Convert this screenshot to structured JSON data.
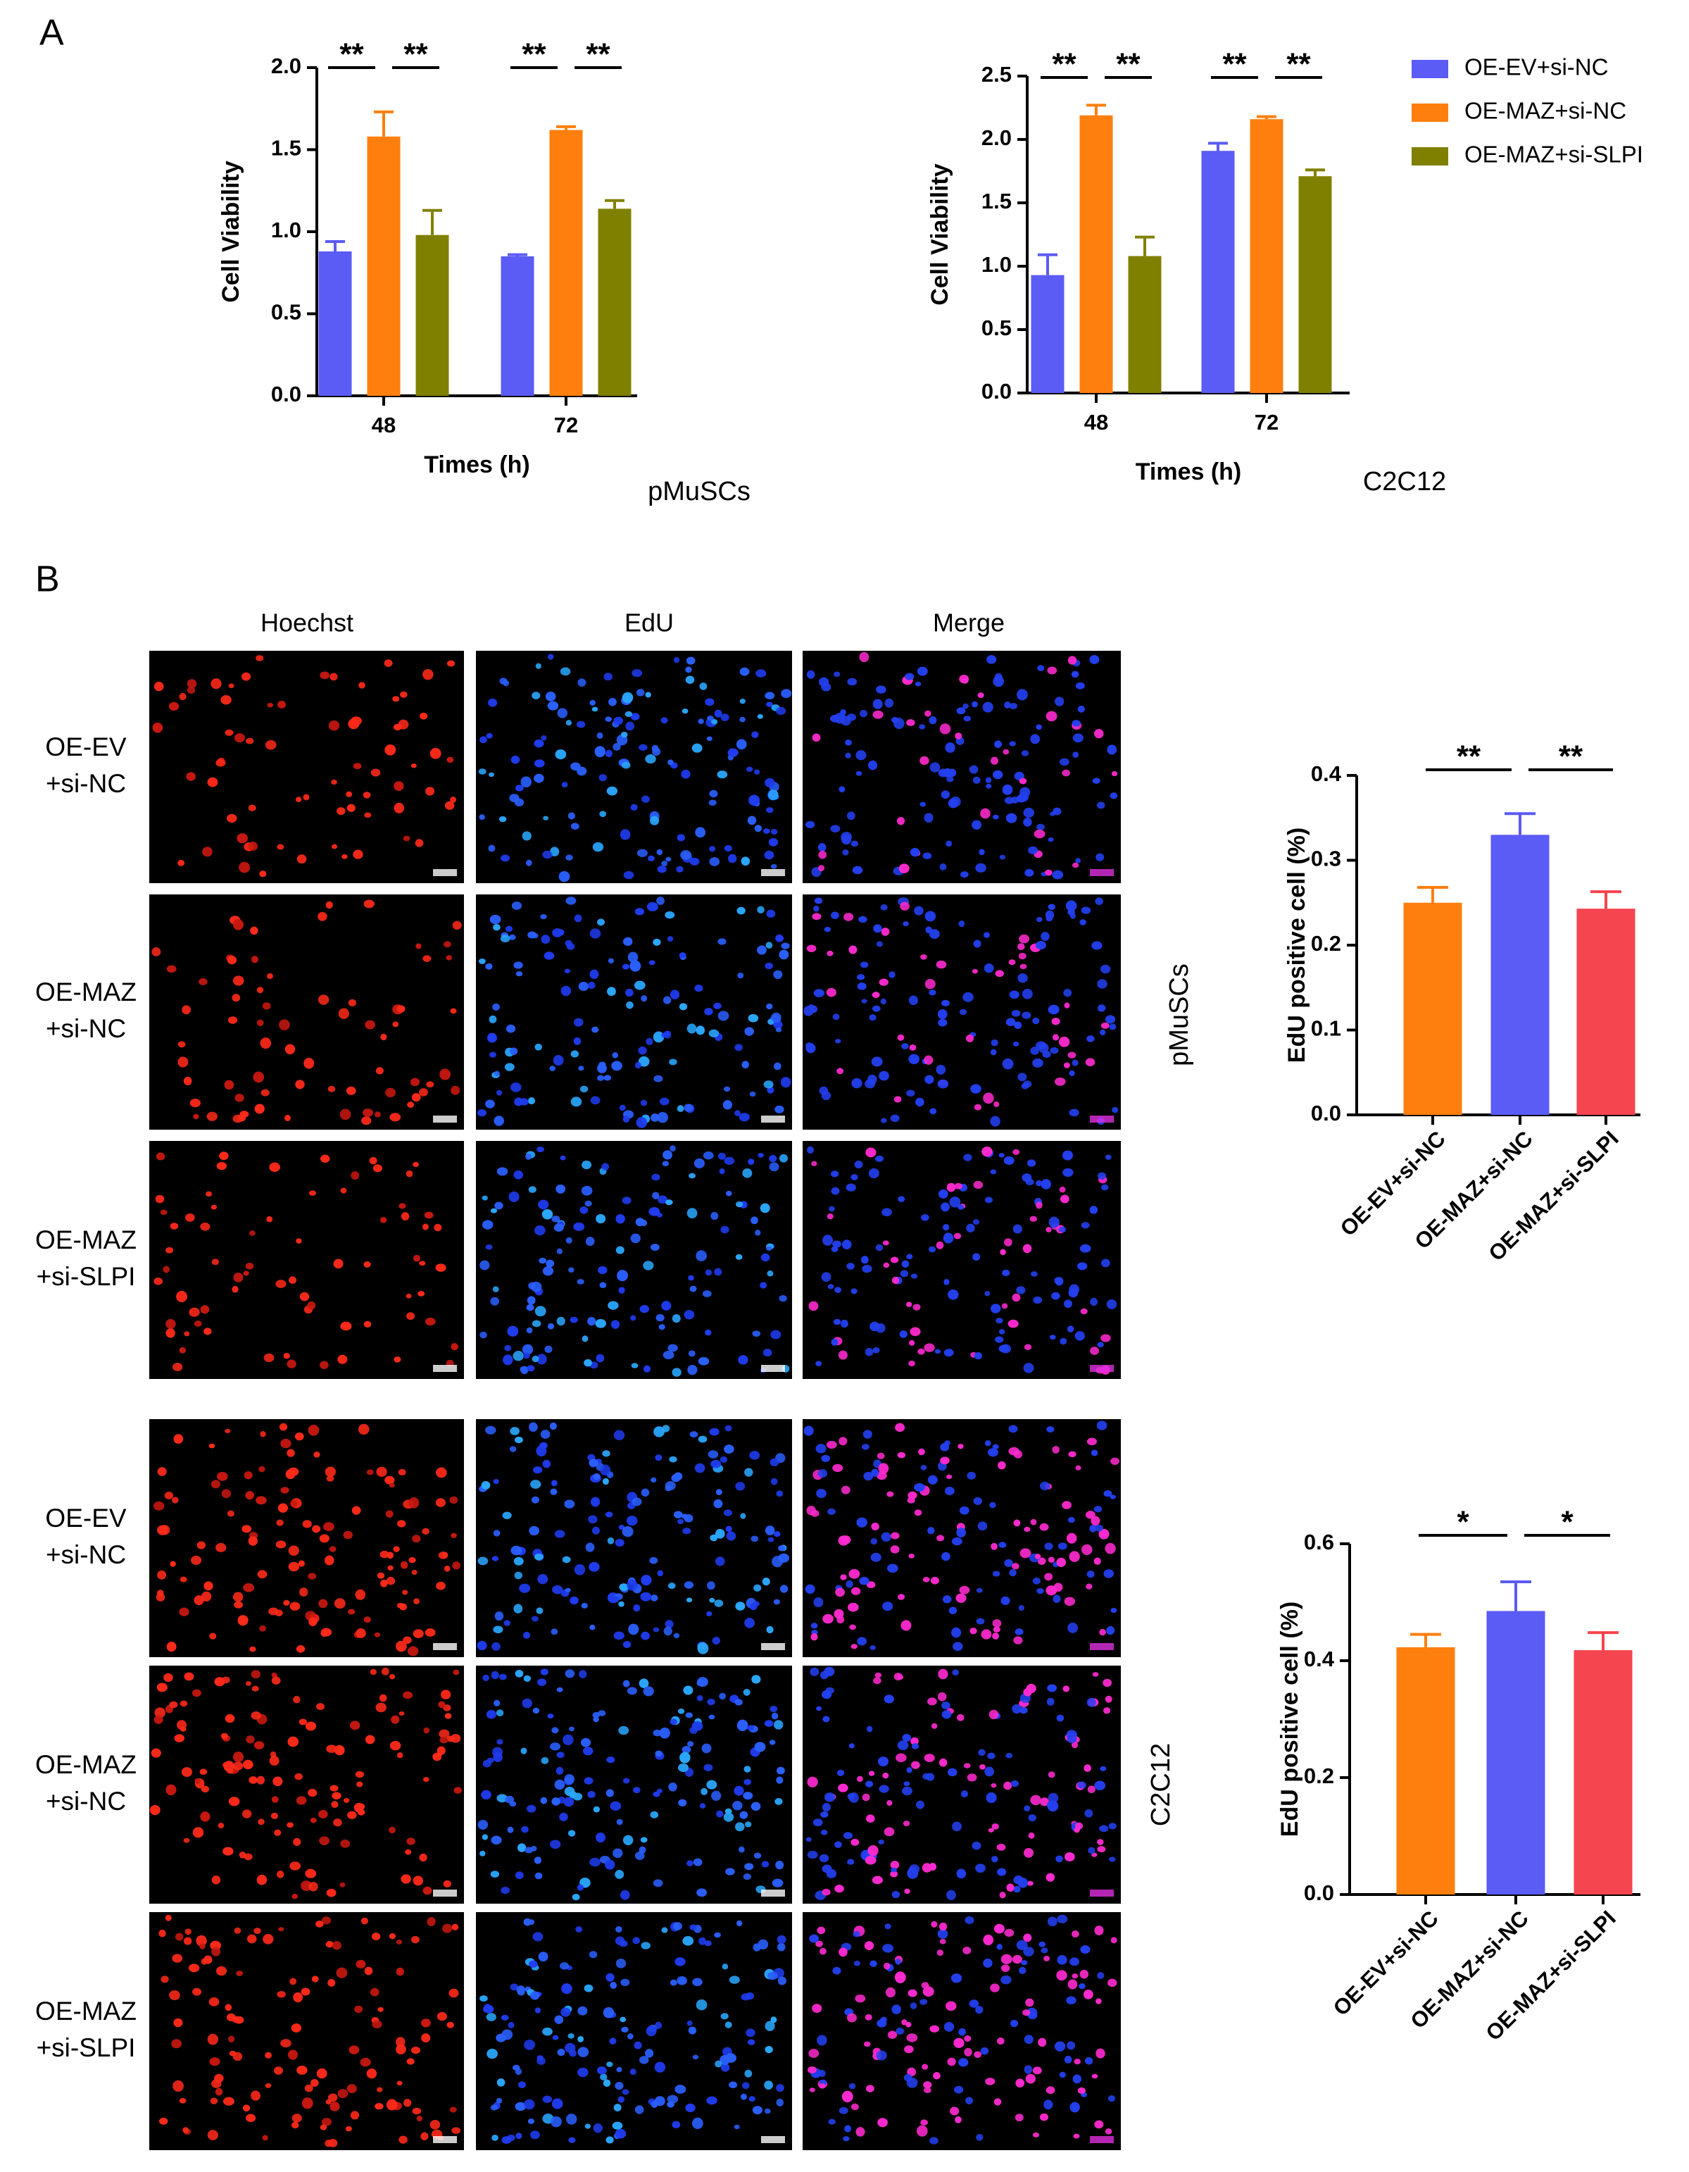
{
  "panel_labels": [
    "A",
    "B"
  ],
  "panel_b": {
    "column_headers": [
      "Hoechst",
      "EdU",
      "Merge"
    ],
    "groups": [
      {
        "cell_line": "pMuSCs",
        "rows": [
          [
            "OE-EV",
            "+si-NC"
          ],
          [
            "OE-MAZ",
            "+si-NC"
          ],
          [
            "OE-MAZ",
            "+si-SLPI"
          ]
        ]
      },
      {
        "cell_line": "C2C12",
        "rows": [
          [
            "OE-EV",
            "+si-NC"
          ],
          [
            "OE-MAZ",
            "+si-NC"
          ],
          [
            "OE-MAZ",
            "+si-SLPI"
          ]
        ]
      }
    ]
  },
  "chart_data": [
    {
      "type": "bar",
      "subtitle": "pMuSCs",
      "y_label": "Cell Viability",
      "x_label": "Times (h)",
      "categories": [
        "48",
        "72"
      ],
      "series": [
        {
          "color": "#5b5bf5",
          "values": [
            0.88,
            0.85
          ],
          "errors": [
            0.06,
            0.01
          ]
        },
        {
          "color": "#ff7f0e",
          "values": [
            1.58,
            1.62
          ],
          "errors": [
            0.15,
            0.02
          ]
        },
        {
          "color": "#808000",
          "values": [
            0.98,
            1.14
          ],
          "errors": [
            0.15,
            0.05
          ]
        }
      ],
      "ylim": [
        0,
        2
      ],
      "yticks": [
        {
          "value": 0,
          "label": "0.0"
        },
        {
          "value": 0.5,
          "label": "0.5"
        },
        {
          "value": 1,
          "label": "1.0"
        },
        {
          "value": 1.5,
          "label": "1.5"
        },
        {
          "value": 2,
          "label": "2.0"
        }
      ],
      "annotations": [
        "**",
        "**",
        "**",
        "**"
      ]
    },
    {
      "type": "bar",
      "subtitle": "C2C12",
      "y_label": "Cell Viability",
      "x_label": "Times (h)",
      "categories": [
        "48",
        "72"
      ],
      "series": [
        {
          "name": "OE-EV+si-NC",
          "color": "#5b5bf5",
          "values": [
            0.93,
            1.91
          ],
          "errors": [
            0.16,
            0.06
          ]
        },
        {
          "name": "OE-MAZ+si-NC",
          "color": "#ff7f0e",
          "values": [
            2.19,
            2.16
          ],
          "errors": [
            0.08,
            0.02
          ]
        },
        {
          "name": "OE-MAZ+si-SLPI",
          "color": "#808000",
          "values": [
            1.08,
            1.71
          ],
          "errors": [
            0.15,
            0.05
          ]
        }
      ],
      "ylim": [
        0,
        2.5
      ],
      "yticks": [
        {
          "value": 0,
          "label": "0.0"
        },
        {
          "value": 0.5,
          "label": "0.5"
        },
        {
          "value": 1,
          "label": "1.0"
        },
        {
          "value": 1.5,
          "label": "1.5"
        },
        {
          "value": 2,
          "label": "2.0"
        },
        {
          "value": 2.5,
          "label": "2.5"
        }
      ],
      "annotations": [
        "**",
        "**",
        "**",
        "**"
      ]
    },
    {
      "type": "bar",
      "y_label": "EdU positive cell (%)",
      "categories": [
        "OE-EV+si-NC",
        "OE-MAZ+si-NC",
        "OE-MAZ+si-SLPI"
      ],
      "values": [
        0.25,
        0.33,
        0.243
      ],
      "errors": [
        0.018,
        0.025,
        0.02
      ],
      "colors": [
        "#ff7f0e",
        "#5b5bf5",
        "#f5454f"
      ],
      "ylim": [
        0,
        0.4
      ],
      "yticks": [
        {
          "value": 0,
          "label": "0.0"
        },
        0.1,
        0.2,
        0.3,
        0.4
      ],
      "annotations": [
        "**",
        "**"
      ]
    },
    {
      "type": "bar",
      "y_label": "EdU positive cell (%)",
      "categories": [
        "OE-EV+si-NC",
        "OE-MAZ+si-NC",
        "OE-MAZ+si-SLPI"
      ],
      "values": [
        0.423,
        0.485,
        0.418
      ],
      "errors": [
        0.022,
        0.05,
        0.03
      ],
      "colors": [
        "#ff7f0e",
        "#5b5bf5",
        "#f5454f"
      ],
      "ylim": [
        0,
        0.6
      ],
      "yticks": [
        {
          "value": 0,
          "label": "0.0"
        },
        0.2,
        0.4,
        0.6
      ],
      "annotations": [
        "*",
        "*"
      ]
    }
  ]
}
